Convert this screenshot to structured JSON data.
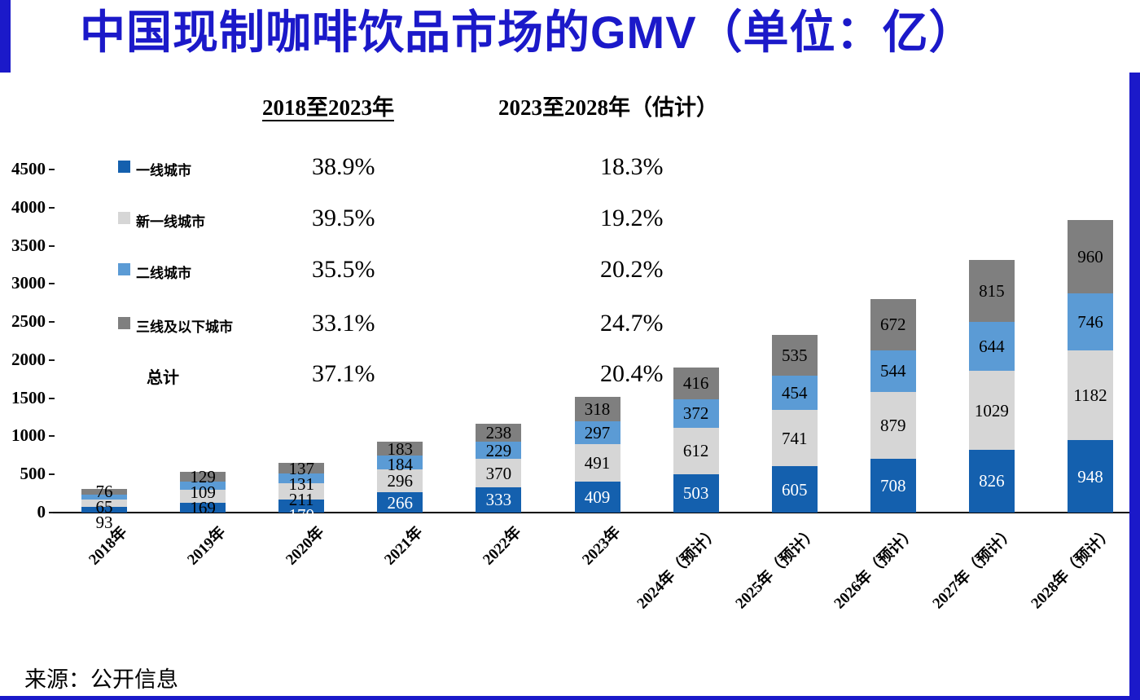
{
  "colors": {
    "accent_blue": "#1b19c9",
    "tier1_blue": "#1460AE",
    "new_tier1_gray": "#D6D6D6",
    "tier2_blue": "#5B9BD5",
    "tier3_gray": "#7F7F7F"
  },
  "header": {
    "title": "中国现制咖啡饮品市场的GMV（单位：亿）"
  },
  "cagr_table": {
    "period_headers": [
      "2018至2023年",
      "2023至2028年（估计）"
    ],
    "rows": [
      {
        "label": "一线城市",
        "cagr_2018_2023": "38.9%",
        "cagr_2023_2028": "18.3%"
      },
      {
        "label": "新一线城市",
        "cagr_2018_2023": "39.5%",
        "cagr_2023_2028": "19.2%"
      },
      {
        "label": "二线城市",
        "cagr_2018_2023": "35.5%",
        "cagr_2023_2028": "20.2%"
      },
      {
        "label": "三线及以下城市",
        "cagr_2018_2023": "33.1%",
        "cagr_2023_2028": "24.7%"
      }
    ],
    "total_row": {
      "label": "总计",
      "cagr_2018_2023": "37.1%",
      "cagr_2023_2028": "20.4%"
    }
  },
  "chart_data": {
    "type": "bar",
    "stacked": true,
    "title": "中国现制咖啡饮品市场的GMV（单位：亿）",
    "unit": "亿",
    "categories": [
      "2018年",
      "2019年",
      "2020年",
      "2021年",
      "2022年",
      "2023年",
      "2024年（预计）",
      "2025年（预计）",
      "2026年（预计）",
      "2027年（预计）",
      "2028年（预计）"
    ],
    "series": [
      {
        "name": "一线城市",
        "color": "#1460AE",
        "label_color": "#FFFFFF",
        "values": [
          79,
          132,
          170,
          266,
          333,
          409,
          503,
          605,
          708,
          826,
          948
        ]
      },
      {
        "name": "新一线城市",
        "color": "#D6D6D6",
        "label_color": "#000000",
        "values": [
          93,
          169,
          211,
          296,
          370,
          491,
          612,
          741,
          879,
          1029,
          1182
        ]
      },
      {
        "name": "二线城市",
        "color": "#5B9BD5",
        "label_color": "#000000",
        "values": [
          65,
          109,
          131,
          184,
          229,
          297,
          372,
          454,
          544,
          644,
          746
        ]
      },
      {
        "name": "三线及以下城市",
        "color": "#7F7F7F",
        "label_color": "#000000",
        "values": [
          76,
          129,
          137,
          183,
          238,
          318,
          416,
          535,
          672,
          815,
          960
        ]
      }
    ],
    "ylim": [
      0,
      4500
    ],
    "ytick_step": 500,
    "grid": false,
    "legend_position": "table-upper-left"
  },
  "footer": {
    "source": "来源：公开信息"
  }
}
